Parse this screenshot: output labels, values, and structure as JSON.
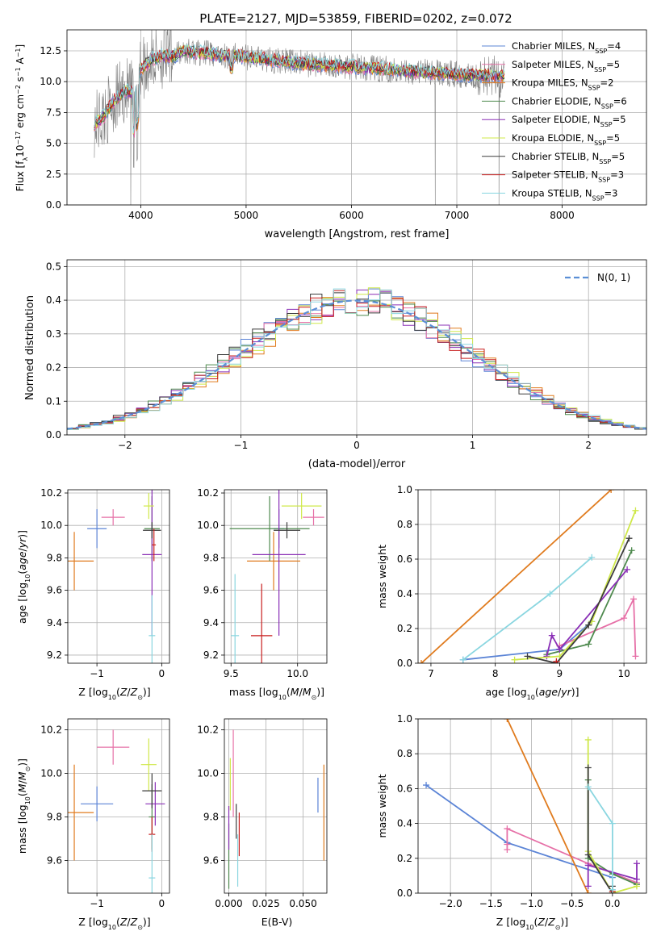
{
  "figure": {
    "title": "PLATE=2127, MJD=53859, FIBERID=0202, z=0.072"
  },
  "colors": {
    "Chabrier MILES": "#5b84d6",
    "Salpeter MILES": "#e670a7",
    "Kroupa MILES": "#e07b1e",
    "Chabrier ELODIE": "#4e8a4e",
    "Salpeter ELODIE": "#8a2fb6",
    "Kroupa ELODIE": "#cfe84a",
    "Chabrier STELIB": "#3c3c3c",
    "Salpeter STELIB": "#c81e1e",
    "Kroupa STELIB": "#8ad6e0",
    "normal": "#5b8fd6"
  },
  "chart_data": [
    {
      "panel": "spectrum",
      "type": "line",
      "xlabel": "wavelength [Angstrom, rest frame]",
      "ylabel": "Flux [f_λ10^-17 erg cm^-2 s^-1 A^-1]",
      "xlim": [
        3300,
        8800
      ],
      "ylim": [
        0,
        14.2
      ],
      "xticks": [
        4000,
        5000,
        6000,
        7000,
        8000
      ],
      "yticks": [
        0.0,
        2.5,
        5.0,
        7.5,
        10.0,
        12.5
      ],
      "legend": "top-right",
      "legend_entries": [
        {
          "series": "Chabrier MILES",
          "text": "Chabrier MILES, N",
          "nssp": "4"
        },
        {
          "series": "Salpeter MILES",
          "text": "Salpeter MILES, N",
          "nssp": "5"
        },
        {
          "series": "Kroupa MILES",
          "text": "Kroupa MILES, N",
          "nssp": "2"
        },
        {
          "series": "Chabrier ELODIE",
          "text": "Chabrier ELODIE, N",
          "nssp": "6"
        },
        {
          "series": "Salpeter ELODIE",
          "text": "Salpeter ELODIE, N",
          "nssp": "5"
        },
        {
          "series": "Kroupa ELODIE",
          "text": "Kroupa ELODIE, N",
          "nssp": "5"
        },
        {
          "series": "Chabrier STELIB",
          "text": "Chabrier STELIB, N",
          "nssp": "5"
        },
        {
          "series": "Salpeter STELIB",
          "text": "Salpeter STELIB, N",
          "nssp": "3"
        },
        {
          "series": "Kroupa STELIB",
          "text": "Kroupa STELIB, N",
          "nssp": "3"
        }
      ],
      "continuum": {
        "wavelength": [
          3550,
          3650,
          3750,
          3850,
          3950,
          4000,
          4100,
          4200,
          4300,
          4400,
          4500,
          4700,
          5000,
          5200,
          5500,
          6000,
          6500,
          7000,
          7500,
          7700
        ],
        "flux": [
          6.5,
          7.2,
          8.5,
          9.3,
          9.0,
          11.0,
          11.8,
          12.1,
          12.0,
          12.5,
          12.4,
          12.2,
          12.0,
          11.8,
          11.5,
          11.2,
          10.9,
          10.6,
          10.4,
          10.2
        ]
      }
    },
    {
      "panel": "residuals",
      "type": "histogram",
      "xlabel": "(data-model)/error",
      "ylabel": "Normed distribution",
      "xlim": [
        -2.5,
        2.5
      ],
      "ylim": [
        0,
        0.52
      ],
      "xticks": [
        -2,
        -1,
        0,
        1,
        2
      ],
      "yticks": [
        0.0,
        0.1,
        0.2,
        0.3,
        0.4,
        0.5
      ],
      "legend": "top-right",
      "normal_label": "N(0, 1)",
      "bin_width": 0.1
    },
    {
      "panel": "age_vs_Z",
      "type": "scatter",
      "xlabel": "Z [log10(Z/Zsun)]",
      "ylabel": "age [log10(age/yr)]",
      "xlim": [
        -1.45,
        0.12
      ],
      "ylim": [
        9.15,
        10.22
      ],
      "xticks": [
        -1,
        0
      ],
      "yticks": [
        9.2,
        9.4,
        9.6,
        9.8,
        10.0,
        10.2
      ],
      "points": [
        {
          "series": "Chabrier MILES",
          "x": -1.0,
          "y": 9.98,
          "xerr": 0.15,
          "yerr": 0.12
        },
        {
          "series": "Salpeter MILES",
          "x": -0.75,
          "y": 10.05,
          "xerr": 0.18,
          "yerr": 0.05
        },
        {
          "series": "Kroupa MILES",
          "x": -1.35,
          "y": 9.78,
          "xerr": 0.3,
          "yerr": 0.18
        },
        {
          "series": "Chabrier ELODIE",
          "x": -0.15,
          "y": 9.98,
          "xerr": 0.12,
          "yerr": 0.2
        },
        {
          "series": "Salpeter ELODIE",
          "x": -0.15,
          "y": 9.82,
          "xerr": 0.15,
          "yerr": 0.5
        },
        {
          "series": "Kroupa ELODIE",
          "x": -0.2,
          "y": 10.12,
          "xerr": 0.08,
          "yerr": 0.08
        },
        {
          "series": "Chabrier STELIB",
          "x": -0.15,
          "y": 9.97,
          "xerr": 0.14,
          "yerr": 0.05
        },
        {
          "series": "Salpeter STELIB",
          "x": -0.12,
          "y": 9.88,
          "xerr": 0.03,
          "yerr": 0.1
        },
        {
          "series": "Kroupa STELIB",
          "x": -0.15,
          "y": 9.32,
          "xerr": 0.05,
          "yerr": 0.25
        }
      ]
    },
    {
      "panel": "age_vs_mass",
      "type": "scatter",
      "xlabel": "mass [log10(M/Msun)]",
      "xlim": [
        9.45,
        10.22
      ],
      "ylim": [
        9.15,
        10.22
      ],
      "xticks": [
        9.5,
        10.0
      ],
      "yticks": [
        9.2,
        9.4,
        9.6,
        9.8,
        10.0,
        10.2
      ],
      "points": [
        {
          "series": "Chabrier MILES",
          "x": 9.86,
          "y": 9.98,
          "xerr": 0.04,
          "yerr": 0.12
        },
        {
          "series": "Salpeter MILES",
          "x": 10.12,
          "y": 10.05,
          "xerr": 0.08,
          "yerr": 0.05
        },
        {
          "series": "Kroupa MILES",
          "x": 9.82,
          "y": 9.78,
          "xerr": 0.2,
          "yerr": 0.18
        },
        {
          "series": "Chabrier ELODIE",
          "x": 9.79,
          "y": 9.98,
          "xerr": 0.3,
          "yerr": 0.2
        },
        {
          "series": "Salpeter ELODIE",
          "x": 9.86,
          "y": 9.82,
          "xerr": 0.2,
          "yerr": 0.5
        },
        {
          "series": "Kroupa ELODIE",
          "x": 10.03,
          "y": 10.12,
          "xerr": 0.15,
          "yerr": 0.08
        },
        {
          "series": "Chabrier STELIB",
          "x": 9.92,
          "y": 9.97,
          "xerr": 0.1,
          "yerr": 0.05
        },
        {
          "series": "Salpeter STELIB",
          "x": 9.73,
          "y": 9.32,
          "xerr": 0.08,
          "yerr": 0.32
        },
        {
          "series": "Kroupa STELIB",
          "x": 9.53,
          "y": 9.32,
          "xerr": 0.03,
          "yerr": 0.38
        }
      ]
    },
    {
      "panel": "mass_weight_vs_age",
      "type": "line",
      "xlabel": "age [log10(age/yr)]",
      "ylabel": "mass weight",
      "xlim": [
        6.8,
        10.35
      ],
      "ylim": [
        0,
        1
      ],
      "xticks": [
        7,
        8,
        9,
        10
      ],
      "yticks": [
        0.0,
        0.2,
        0.4,
        0.6,
        0.8,
        1.0
      ],
      "series": [
        {
          "name": "Chabrier MILES",
          "x": [
            7.5,
            9.0,
            9.5
          ],
          "y": [
            0.02,
            0.08,
            0.24
          ]
        },
        {
          "name": "Salpeter MILES",
          "x": [
            9.0,
            10.0,
            10.15,
            10.18
          ],
          "y": [
            0.1,
            0.26,
            0.37,
            0.04
          ]
        },
        {
          "name": "Kroupa MILES",
          "x": [
            6.85,
            9.8
          ],
          "y": [
            0.0,
            1.0
          ]
        },
        {
          "name": "Chabrier ELODIE",
          "x": [
            8.8,
            9.45,
            10.12
          ],
          "y": [
            0.05,
            0.11,
            0.65
          ]
        },
        {
          "name": "Salpeter ELODIE",
          "x": [
            8.8,
            8.88,
            9.0,
            10.05
          ],
          "y": [
            0.04,
            0.16,
            0.08,
            0.54
          ]
        },
        {
          "name": "Kroupa ELODIE",
          "x": [
            8.3,
            9.0,
            9.5,
            10.18
          ],
          "y": [
            0.02,
            0.04,
            0.24,
            0.88
          ]
        },
        {
          "name": "Chabrier STELIB",
          "x": [
            8.5,
            8.95,
            9.45,
            10.08
          ],
          "y": [
            0.04,
            0.0,
            0.22,
            0.72
          ]
        },
        {
          "name": "Salpeter STELIB",
          "x": [
            8.95
          ],
          "y": [
            0.01
          ]
        },
        {
          "name": "Kroupa STELIB",
          "x": [
            7.5,
            8.85,
            9.5
          ],
          "y": [
            0.02,
            0.4,
            0.61
          ]
        }
      ]
    },
    {
      "panel": "mass_vs_Z",
      "type": "scatter",
      "xlabel": "Z [log10(Z/Zsun)]",
      "ylabel": "mass [log10(M/Msun)]",
      "xlim": [
        -1.45,
        0.12
      ],
      "ylim": [
        9.45,
        10.25
      ],
      "xticks": [
        -1,
        0
      ],
      "yticks": [
        9.6,
        9.8,
        10.0,
        10.2
      ],
      "points": [
        {
          "series": "Chabrier MILES",
          "x": -1.0,
          "y": 9.86,
          "xerr": 0.25,
          "yerr": 0.08
        },
        {
          "series": "Salpeter MILES",
          "x": -0.75,
          "y": 10.12,
          "xerr": 0.25,
          "yerr": 0.08
        },
        {
          "series": "Kroupa MILES",
          "x": -1.35,
          "y": 9.82,
          "xerr": 0.3,
          "yerr": 0.22
        },
        {
          "series": "Chabrier ELODIE",
          "x": -0.15,
          "y": 9.8,
          "xerr": 0.05,
          "yerr": 0.15
        },
        {
          "series": "Salpeter ELODIE",
          "x": -0.1,
          "y": 9.86,
          "xerr": 0.15,
          "yerr": 0.1
        },
        {
          "series": "Kroupa ELODIE",
          "x": -0.2,
          "y": 10.04,
          "xerr": 0.12,
          "yerr": 0.12
        },
        {
          "series": "Chabrier STELIB",
          "x": -0.15,
          "y": 9.92,
          "xerr": 0.15,
          "yerr": 0.08
        },
        {
          "series": "Salpeter STELIB",
          "x": -0.15,
          "y": 9.72,
          "xerr": 0.05,
          "yerr": 0.08
        },
        {
          "series": "Kroupa STELIB",
          "x": -0.15,
          "y": 9.52,
          "xerr": 0.05,
          "yerr": 0.2
        }
      ]
    },
    {
      "panel": "mass_vs_ebv",
      "type": "scatter",
      "xlabel": "E(B-V)",
      "xlim": [
        -0.003,
        0.066
      ],
      "ylim": [
        9.45,
        10.25
      ],
      "xticks": [
        0.0,
        0.025,
        0.05
      ],
      "yticks": [
        9.6,
        9.8,
        10.0,
        10.2
      ],
      "points": [
        {
          "series": "Chabrier MILES",
          "x": 0.06,
          "y": 9.9,
          "xerr": 0.0,
          "yerr": 0.08
        },
        {
          "series": "Salpeter MILES",
          "x": 0.003,
          "y": 10.0,
          "xerr": 0.0,
          "yerr": 0.2
        },
        {
          "series": "Kroupa MILES",
          "x": 0.064,
          "y": 9.82,
          "xerr": 0.0,
          "yerr": 0.22
        },
        {
          "series": "Chabrier ELODIE",
          "x": 0.0,
          "y": 9.62,
          "xerr": 0.0,
          "yerr": 0.15
        },
        {
          "series": "Salpeter ELODIE",
          "x": 0.0,
          "y": 9.75,
          "xerr": 0.0,
          "yerr": 0.1
        },
        {
          "series": "Kroupa ELODIE",
          "x": 0.001,
          "y": 9.95,
          "xerr": 0.0,
          "yerr": 0.12
        },
        {
          "series": "Chabrier STELIB",
          "x": 0.005,
          "y": 9.78,
          "xerr": 0.0,
          "yerr": 0.08
        },
        {
          "series": "Salpeter STELIB",
          "x": 0.007,
          "y": 9.72,
          "xerr": 0.0,
          "yerr": 0.1
        },
        {
          "series": "Kroupa STELIB",
          "x": 0.006,
          "y": 9.6,
          "xerr": 0.0,
          "yerr": 0.12
        }
      ]
    },
    {
      "panel": "mass_weight_vs_Z",
      "type": "line",
      "xlabel": "Z [log10(Z/Zsun)]",
      "ylabel": "mass weight",
      "xlim": [
        -2.4,
        0.42
      ],
      "ylim": [
        0,
        1
      ],
      "xticks": [
        -2.0,
        -1.5,
        -1.0,
        -0.5,
        0.0
      ],
      "yticks": [
        0.0,
        0.2,
        0.4,
        0.6,
        0.8,
        1.0
      ],
      "series": [
        {
          "name": "Chabrier MILES",
          "x": [
            -2.3,
            -1.3,
            0.0
          ],
          "y": [
            0.62,
            0.29,
            0.09
          ]
        },
        {
          "name": "Salpeter MILES",
          "x": [
            -1.3,
            -1.3,
            -1.3,
            -0.3,
            0.3
          ],
          "y": [
            0.25,
            0.28,
            0.37,
            0.17,
            0.06
          ]
        },
        {
          "name": "Kroupa MILES",
          "x": [
            -1.3,
            -0.3
          ],
          "y": [
            1.0,
            0.0
          ]
        },
        {
          "name": "Chabrier ELODIE",
          "x": [
            -0.3,
            -0.3,
            0.0,
            0.3
          ],
          "y": [
            0.65,
            0.2,
            0.11,
            0.05
          ]
        },
        {
          "name": "Salpeter ELODIE",
          "x": [
            -0.3,
            -0.3,
            0.3,
            0.3
          ],
          "y": [
            0.04,
            0.16,
            0.08,
            0.17
          ]
        },
        {
          "name": "Kroupa ELODIE",
          "x": [
            -0.3,
            -0.3,
            0.0,
            0.3
          ],
          "y": [
            0.88,
            0.24,
            0.0,
            0.04
          ]
        },
        {
          "name": "Chabrier STELIB",
          "x": [
            -0.3,
            -0.3,
            0.0,
            0.0
          ],
          "y": [
            0.72,
            0.22,
            0.0,
            0.04
          ]
        },
        {
          "name": "Salpeter STELIB",
          "x": [
            0.0
          ],
          "y": [
            0.01
          ]
        },
        {
          "name": "Kroupa STELIB",
          "x": [
            -0.3,
            0.0,
            0.0
          ],
          "y": [
            0.61,
            0.4,
            0.02
          ]
        }
      ]
    }
  ]
}
